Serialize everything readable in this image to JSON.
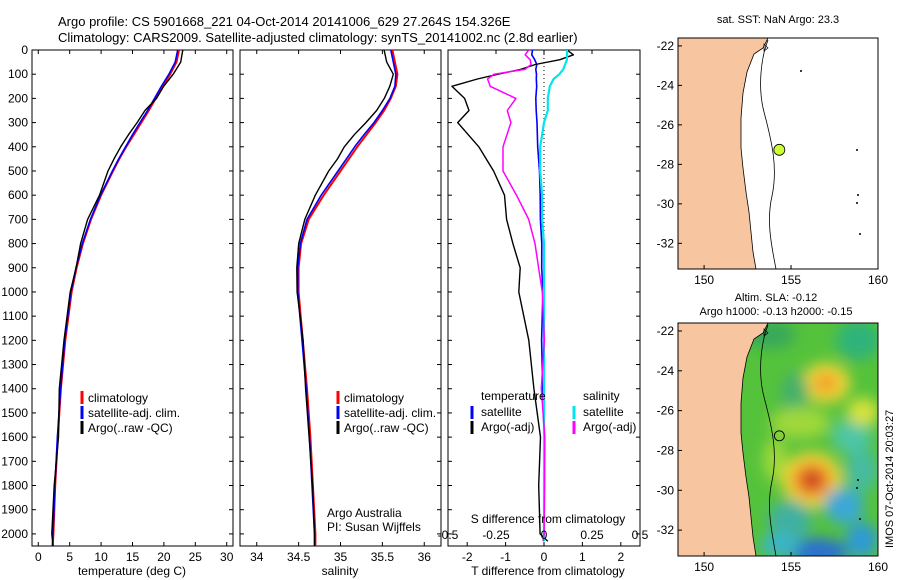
{
  "header": {
    "line1": "Argo profile: CS 5901668_221 04-Oct-2014 20141006_629 27.264S 154.326E",
    "line2": "Climatology: CARS2009. Satellite-adjusted climatology: synTS_20141002.nc (2.8d earlier)"
  },
  "colors": {
    "climatology": "#ff0000",
    "satellite": "#0000ff",
    "argo": "#000000",
    "sal_satellite": "#00e5ee",
    "sal_argo": "#ff00ff",
    "land": "#f7c59f",
    "float_marker": "#ccff33"
  },
  "chart_data": [
    {
      "type": "line",
      "panel": "temperature",
      "xlabel": "temperature (deg C)",
      "xlim": [
        -1,
        31
      ],
      "xticks": [
        "0",
        "5",
        "10",
        "15",
        "20",
        "25",
        "30"
      ],
      "ylim": [
        2050,
        0
      ],
      "yticks": [
        "0",
        "100",
        "200",
        "300",
        "400",
        "500",
        "600",
        "700",
        "800",
        "900",
        "1000",
        "1100",
        "1200",
        "1300",
        "1400",
        "1500",
        "1600",
        "1700",
        "1800",
        "1900",
        "2000"
      ],
      "legend": [
        "climatology",
        "satellite-adj. clim.",
        "Argo(..raw -QC)"
      ],
      "y": [
        0,
        50,
        100,
        150,
        200,
        250,
        300,
        350,
        400,
        450,
        500,
        600,
        700,
        800,
        900,
        1000,
        1200,
        1400,
        1600,
        1800,
        2000,
        2050
      ],
      "series": [
        {
          "name": "climatology",
          "values": [
            22.4,
            22.0,
            21.0,
            19.8,
            18.7,
            17.6,
            16.4,
            15.2,
            14.0,
            12.9,
            11.9,
            10.0,
            8.4,
            7.1,
            6.1,
            5.3,
            4.3,
            3.6,
            3.1,
            2.7,
            2.4,
            2.3
          ]
        },
        {
          "name": "satellite-adj. clim.",
          "values": [
            22.2,
            21.8,
            20.8,
            19.6,
            18.5,
            17.4,
            16.2,
            15.0,
            13.9,
            12.8,
            11.8,
            9.9,
            8.3,
            7.0,
            6.0,
            5.2,
            4.2,
            3.55,
            3.05,
            2.65,
            2.35,
            2.25
          ]
        },
        {
          "name": "Argo(..raw -QC)",
          "values": [
            23.0,
            22.6,
            21.6,
            20.0,
            18.6,
            17.2,
            15.7,
            14.3,
            13.1,
            12.1,
            11.2,
            9.5,
            8.0,
            6.8,
            5.9,
            5.1,
            4.1,
            3.5,
            3.0,
            2.6,
            2.3,
            2.2
          ]
        }
      ]
    },
    {
      "type": "line",
      "panel": "salinity",
      "xlabel": "salinity",
      "xlim": [
        33.8,
        36.2
      ],
      "xticks": [
        "34",
        "34.5",
        "35",
        "35.5",
        "36"
      ],
      "ylim": [
        2050,
        0
      ],
      "legend": [
        "climatology",
        "satellite-adj. clim.",
        "Argo(..raw -QC)"
      ],
      "y": [
        0,
        50,
        100,
        150,
        200,
        250,
        300,
        350,
        400,
        450,
        500,
        600,
        700,
        800,
        900,
        1000,
        1200,
        1400,
        1600,
        1800,
        2000,
        2050
      ],
      "series": [
        {
          "name": "climatology",
          "values": [
            35.62,
            35.65,
            35.68,
            35.66,
            35.6,
            35.52,
            35.42,
            35.31,
            35.2,
            35.1,
            35.0,
            34.8,
            34.62,
            34.53,
            34.5,
            34.5,
            34.55,
            34.6,
            34.64,
            34.67,
            34.7,
            34.7
          ]
        },
        {
          "name": "satellite-adj. clim.",
          "values": [
            35.6,
            35.63,
            35.66,
            35.65,
            35.59,
            35.5,
            35.4,
            35.28,
            35.17,
            35.07,
            34.97,
            34.77,
            34.6,
            34.52,
            34.49,
            34.49,
            34.54,
            34.59,
            34.63,
            34.66,
            34.69,
            34.69
          ]
        },
        {
          "name": "Argo(..raw -QC)",
          "values": [
            35.52,
            35.55,
            35.62,
            35.6,
            35.52,
            35.43,
            35.3,
            35.17,
            35.05,
            34.95,
            34.87,
            34.7,
            34.57,
            34.5,
            34.48,
            34.49,
            34.54,
            34.59,
            34.63,
            34.66,
            34.69,
            34.69
          ]
        }
      ]
    },
    {
      "type": "line",
      "panel": "difference",
      "xlabel": "T difference from climatology",
      "xlabel_top": "S difference from climatology",
      "xlim": [
        -2.5,
        2.5
      ],
      "xticks": [
        "-2",
        "-1",
        "0",
        "1",
        "2"
      ],
      "xticks_s": [
        "-0.5",
        "-0.25",
        "0",
        "0.25",
        "0.5"
      ],
      "ylim": [
        2050,
        0
      ],
      "legend_left_title": "temperature",
      "legend_right_title": "salinity",
      "legend": [
        "satellite",
        "Argo(-adj)",
        "satellite",
        "Argo(-adj)"
      ],
      "y": [
        0,
        20,
        40,
        60,
        80,
        100,
        120,
        150,
        200,
        250,
        300,
        400,
        500,
        600,
        700,
        800,
        900,
        1000,
        1200,
        1400,
        1600,
        1800,
        2000,
        2030
      ],
      "series": [
        {
          "name": "temperature satellite",
          "values": [
            -0.3,
            -0.3,
            -0.25,
            -0.2,
            -0.2,
            -0.2,
            -0.2,
            -0.2,
            -0.2,
            -0.2,
            -0.2,
            -0.15,
            -0.12,
            -0.1,
            -0.1,
            -0.05,
            -0.05,
            -0.05,
            -0.05,
            -0.03,
            0.0,
            0.0,
            0.0,
            0.0
          ]
        },
        {
          "name": "temperature Argo(-adj)",
          "values": [
            0.6,
            0.7,
            0.4,
            -0.2,
            -0.6,
            -1.2,
            -1.8,
            -2.3,
            -2.1,
            -2.0,
            -2.2,
            -1.7,
            -1.3,
            -1.1,
            -0.9,
            -0.8,
            -0.7,
            -0.6,
            -0.4,
            -0.25,
            -0.15,
            -0.1,
            -0.05,
            0.0
          ]
        },
        {
          "name": "salinity satellite",
          "values": [
            0.12,
            0.12,
            0.12,
            0.11,
            0.1,
            0.08,
            0.05,
            0.03,
            0.02,
            0.02,
            0.0,
            -0.02,
            -0.02,
            -0.01,
            -0.01,
            0.0,
            0.0,
            0.0,
            0.0,
            0.0,
            0.0,
            0.0,
            0.0,
            0.0
          ]
        },
        {
          "name": "salinity Argo(-adj)",
          "values": [
            -0.08,
            -0.1,
            -0.06,
            -0.08,
            -0.1,
            -0.25,
            -0.3,
            -0.28,
            -0.15,
            -0.18,
            -0.18,
            -0.22,
            -0.2,
            -0.15,
            -0.08,
            -0.05,
            -0.02,
            -0.01,
            -0.01,
            0.0,
            0.0,
            0.0,
            0.0,
            0.0
          ]
        }
      ]
    },
    {
      "type": "map",
      "panel": "sst-map",
      "title": "sat. SST: NaN Argo: 23.3",
      "xlim": [
        148.5,
        160
      ],
      "ylim": [
        -33.3,
        -21.6
      ],
      "xticks": [
        "150",
        "155",
        "160"
      ],
      "yticks": [
        "-22",
        "-24",
        "-26",
        "-28",
        "-30",
        "-32"
      ],
      "float_position": {
        "lon": 154.326,
        "lat": -27.264
      }
    },
    {
      "type": "map",
      "panel": "sla-map",
      "title_line1": "Altim. SLA: -0.12",
      "title_line2": "Argo h1000: -0.13 h2000: -0.15",
      "xlim": [
        148.5,
        160
      ],
      "ylim": [
        -33.3,
        -21.6
      ],
      "xticks": [
        "150",
        "155",
        "160"
      ],
      "yticks": [
        "-22",
        "-24",
        "-26",
        "-28",
        "-30",
        "-32"
      ],
      "float_position": {
        "lon": 154.326,
        "lat": -27.264
      }
    }
  ],
  "side_label": "IMOS 07-Oct-2014 20:03:27",
  "credits": {
    "line1": "Argo Australia",
    "line2": "PI: Susan Wijffels"
  }
}
